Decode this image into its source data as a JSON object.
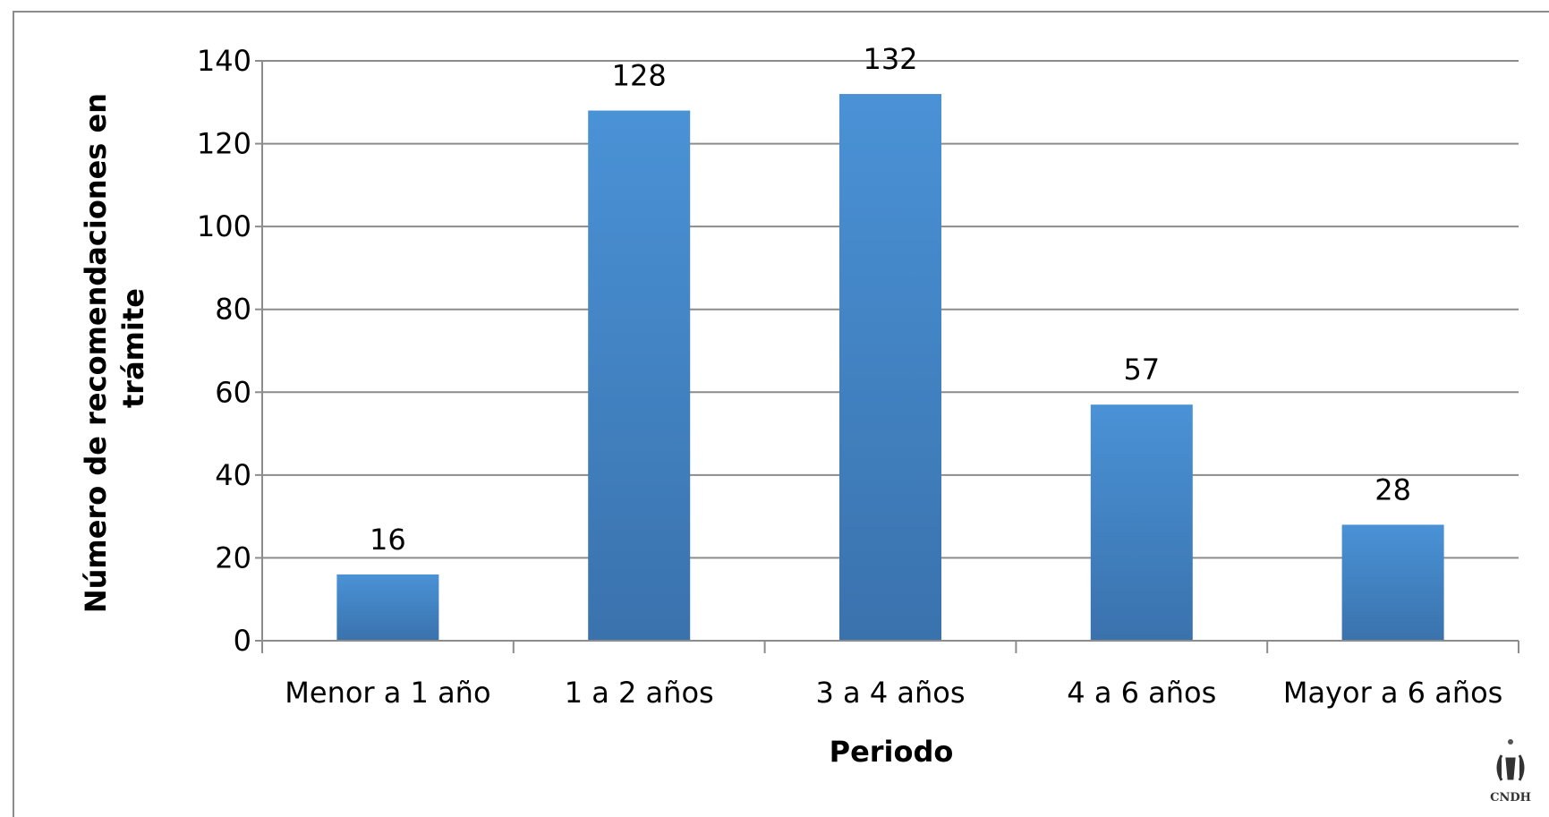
{
  "chart_data": {
    "type": "bar",
    "categories": [
      "Menor a 1 año",
      "1 a 2 años",
      "3 a 4 años",
      "4 a 6 años",
      "Mayor a 6 años"
    ],
    "values": [
      16,
      128,
      132,
      57,
      28
    ],
    "xlabel": "Periodo",
    "ylabel": [
      "Número de recomendaciones en",
      "trámite"
    ],
    "ylim": [
      0,
      140
    ],
    "yticks": [
      0,
      20,
      40,
      60,
      80,
      100,
      120,
      140
    ],
    "grid": true,
    "legend": "none",
    "bar_color_top": "#4a92d6",
    "bar_color_bottom": "#3a72ad",
    "grid_color": "#8c8c8c"
  },
  "logo": {
    "text": "CNDH"
  }
}
